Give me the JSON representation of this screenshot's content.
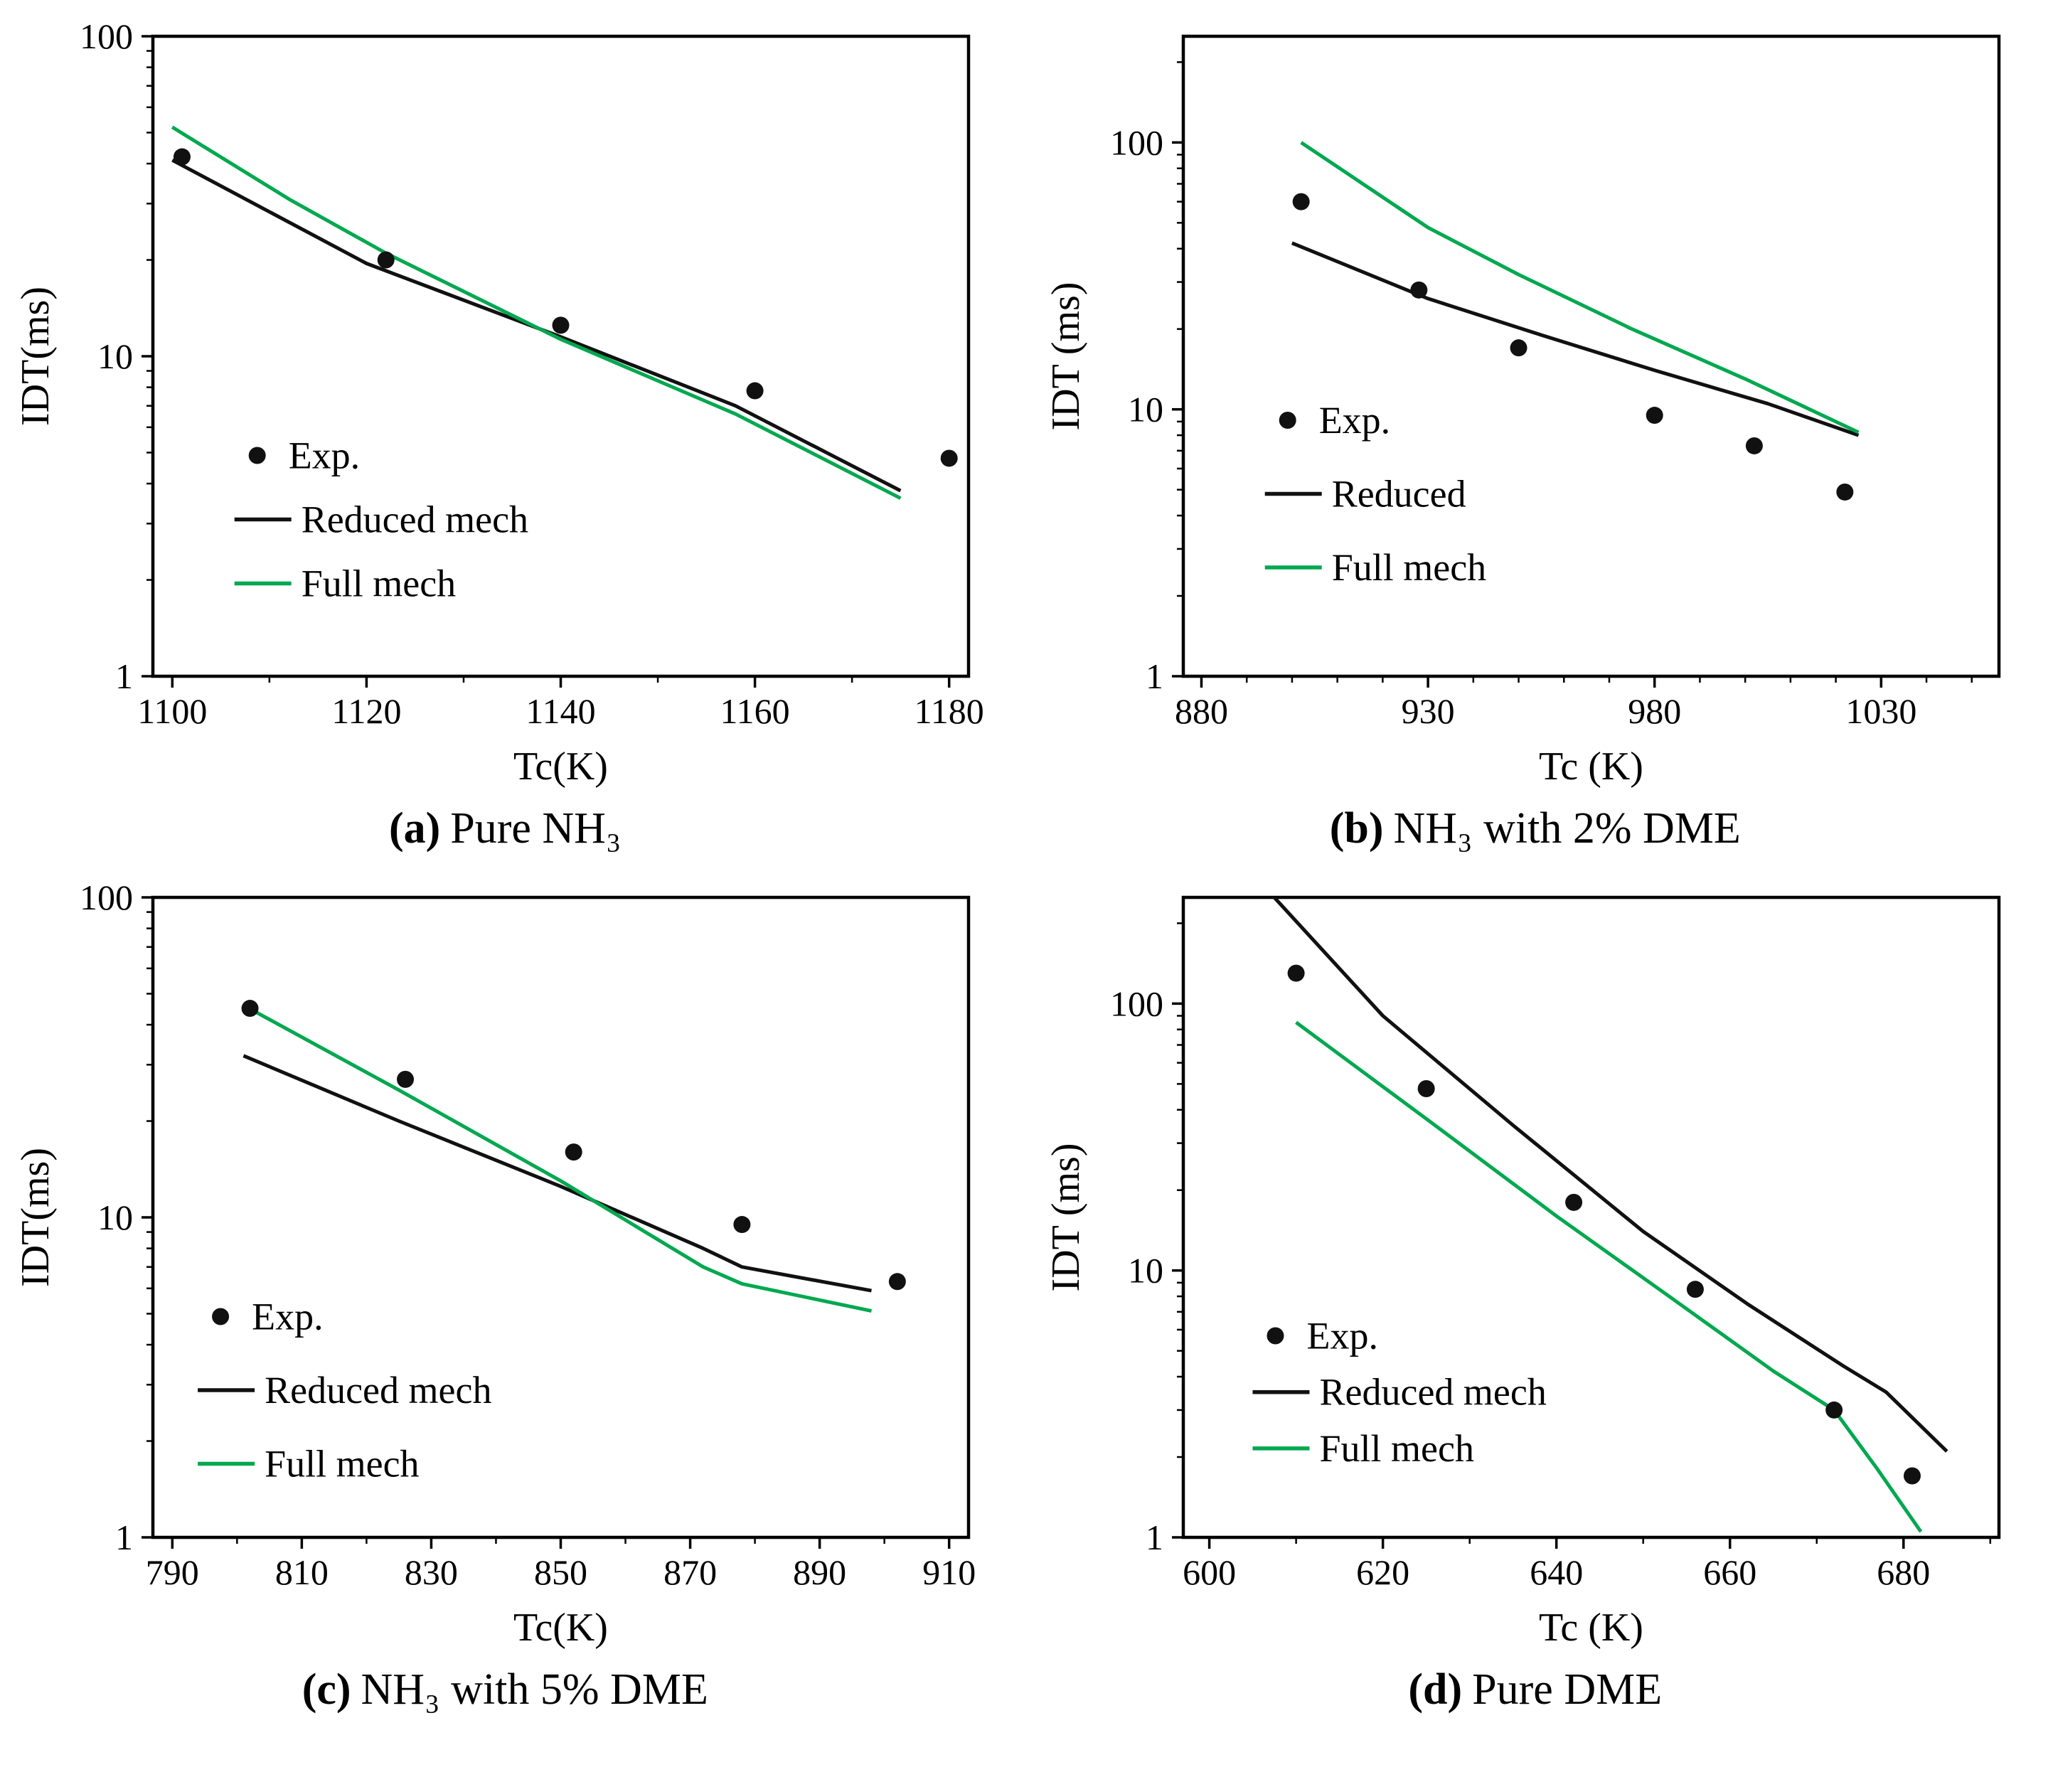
{
  "figure": {
    "background": "#ffffff"
  },
  "colors": {
    "axis": "#000000",
    "text": "#000000",
    "exp": "#111111",
    "reduced": "#111111",
    "full": "#00a84f"
  },
  "chart_data": [
    {
      "id": "a",
      "type": "line",
      "caption_label": "(a)",
      "caption_text": "Pure NH₃",
      "xlabel": "Tc(K)",
      "ylabel": "IDT(ms)",
      "xlim": [
        1098,
        1182
      ],
      "ylim": [
        1,
        100
      ],
      "yscale": "log",
      "grid": false,
      "xticks": [
        1100,
        1120,
        1140,
        1160,
        1180
      ],
      "xminor_step": 10,
      "yticks": [
        1,
        10,
        100
      ],
      "legend": {
        "position": "lower-left",
        "x": 0.1,
        "y": 0.655,
        "dy": 0.1,
        "items": [
          {
            "marker": "dot",
            "series": "exp",
            "label": "Exp."
          },
          {
            "marker": "line",
            "series": "reduced",
            "label": "Reduced mech"
          },
          {
            "marker": "line",
            "series": "full",
            "label": "Full mech"
          }
        ]
      },
      "series": {
        "exp": [
          [
            1101,
            42
          ],
          [
            1122,
            20
          ],
          [
            1140,
            12.5
          ],
          [
            1160,
            7.8
          ],
          [
            1180,
            4.8
          ]
        ],
        "reduced": [
          [
            1100,
            41
          ],
          [
            1120,
            19.5
          ],
          [
            1140,
            11.5
          ],
          [
            1158,
            7.0
          ],
          [
            1175,
            3.8
          ]
        ],
        "full": [
          [
            1100,
            52
          ],
          [
            1112,
            31
          ],
          [
            1122,
            21
          ],
          [
            1140,
            11.3
          ],
          [
            1158,
            6.6
          ],
          [
            1175,
            3.6
          ]
        ]
      }
    },
    {
      "id": "b",
      "type": "line",
      "caption_label": "(b)",
      "caption_text": "NH₃ with 2% DME",
      "xlabel": "Tc (K)",
      "ylabel": "IDT (ms)",
      "xlim": [
        876,
        1056
      ],
      "ylim": [
        1,
        250
      ],
      "yscale": "log",
      "grid": false,
      "xticks": [
        880,
        930,
        980,
        1030
      ],
      "xminor_step": 10,
      "yticks": [
        1,
        10,
        100
      ],
      "legend": {
        "position": "lower-left",
        "x": 0.1,
        "y": 0.6,
        "dy": 0.115,
        "items": [
          {
            "marker": "dot",
            "series": "exp",
            "label": "Exp."
          },
          {
            "marker": "line",
            "series": "reduced",
            "label": "Reduced"
          },
          {
            "marker": "line",
            "series": "full",
            "label": "Full mech"
          }
        ]
      },
      "series": {
        "exp": [
          [
            902,
            60
          ],
          [
            928,
            28
          ],
          [
            950,
            17
          ],
          [
            980,
            9.5
          ],
          [
            1002,
            7.3
          ],
          [
            1022,
            4.9
          ]
        ],
        "reduced": [
          [
            900,
            42
          ],
          [
            930,
            26
          ],
          [
            955,
            19
          ],
          [
            980,
            14
          ],
          [
            1005,
            10.5
          ],
          [
            1025,
            8
          ]
        ],
        "full": [
          [
            902,
            100
          ],
          [
            930,
            48
          ],
          [
            950,
            32
          ],
          [
            975,
            20
          ],
          [
            1000,
            13
          ],
          [
            1025,
            8.2
          ]
        ]
      }
    },
    {
      "id": "c",
      "type": "line",
      "caption_label": "(c)",
      "caption_text": "NH₃ with 5% DME",
      "xlabel": "Tc(K)",
      "ylabel": "IDT(ms)",
      "xlim": [
        787,
        913
      ],
      "ylim": [
        1,
        100
      ],
      "yscale": "log",
      "grid": false,
      "xticks": [
        790,
        810,
        830,
        850,
        870,
        890,
        910
      ],
      "xminor_step": 10,
      "yticks": [
        1,
        10,
        100
      ],
      "legend": {
        "position": "lower-left",
        "x": 0.055,
        "y": 0.655,
        "dy": 0.115,
        "items": [
          {
            "marker": "dot",
            "series": "exp",
            "label": "Exp."
          },
          {
            "marker": "line",
            "series": "reduced",
            "label": "Reduced mech"
          },
          {
            "marker": "line",
            "series": "full",
            "label": "Full mech"
          }
        ]
      },
      "series": {
        "exp": [
          [
            802,
            45
          ],
          [
            826,
            27
          ],
          [
            852,
            16
          ],
          [
            878,
            9.5
          ],
          [
            902,
            6.3
          ]
        ],
        "reduced": [
          [
            801,
            32
          ],
          [
            825,
            20
          ],
          [
            850,
            12.5
          ],
          [
            872,
            8
          ],
          [
            878,
            7
          ],
          [
            898,
            5.9
          ]
        ],
        "full": [
          [
            801,
            46
          ],
          [
            825,
            25
          ],
          [
            850,
            13
          ],
          [
            872,
            7
          ],
          [
            878,
            6.2
          ],
          [
            898,
            5.1
          ]
        ]
      }
    },
    {
      "id": "d",
      "type": "line",
      "caption_label": "(d)",
      "caption_text": "Pure DME",
      "xlabel": "Tc (K)",
      "ylabel": "IDT (ms)",
      "xlim": [
        597,
        691
      ],
      "ylim": [
        1,
        250
      ],
      "yscale": "log",
      "grid": false,
      "xticks": [
        600,
        620,
        640,
        660,
        680
      ],
      "xminor_step": 10,
      "yticks": [
        1,
        10,
        100
      ],
      "legend": {
        "position": "lower-left",
        "x": 0.085,
        "y": 0.685,
        "dy": 0.088,
        "items": [
          {
            "marker": "dot",
            "series": "exp",
            "label": "Exp."
          },
          {
            "marker": "line",
            "series": "reduced",
            "label": "Reduced mech"
          },
          {
            "marker": "line",
            "series": "full",
            "label": "Full mech"
          }
        ]
      },
      "series": {
        "exp": [
          [
            610,
            130
          ],
          [
            625,
            48
          ],
          [
            642,
            18
          ],
          [
            656,
            8.5
          ],
          [
            672,
            3.0
          ],
          [
            681,
            1.7
          ]
        ],
        "reduced": [
          [
            607,
            260
          ],
          [
            620,
            90
          ],
          [
            635,
            35
          ],
          [
            650,
            14
          ],
          [
            662,
            7.5
          ],
          [
            673,
            4.4
          ],
          [
            678,
            3.5
          ],
          [
            685,
            2.1
          ]
        ],
        "full": [
          [
            610,
            85
          ],
          [
            625,
            37
          ],
          [
            640,
            16
          ],
          [
            653,
            8
          ],
          [
            665,
            4.2
          ],
          [
            672,
            3.0
          ],
          [
            677,
            1.8
          ],
          [
            682,
            1.05
          ]
        ]
      }
    }
  ]
}
